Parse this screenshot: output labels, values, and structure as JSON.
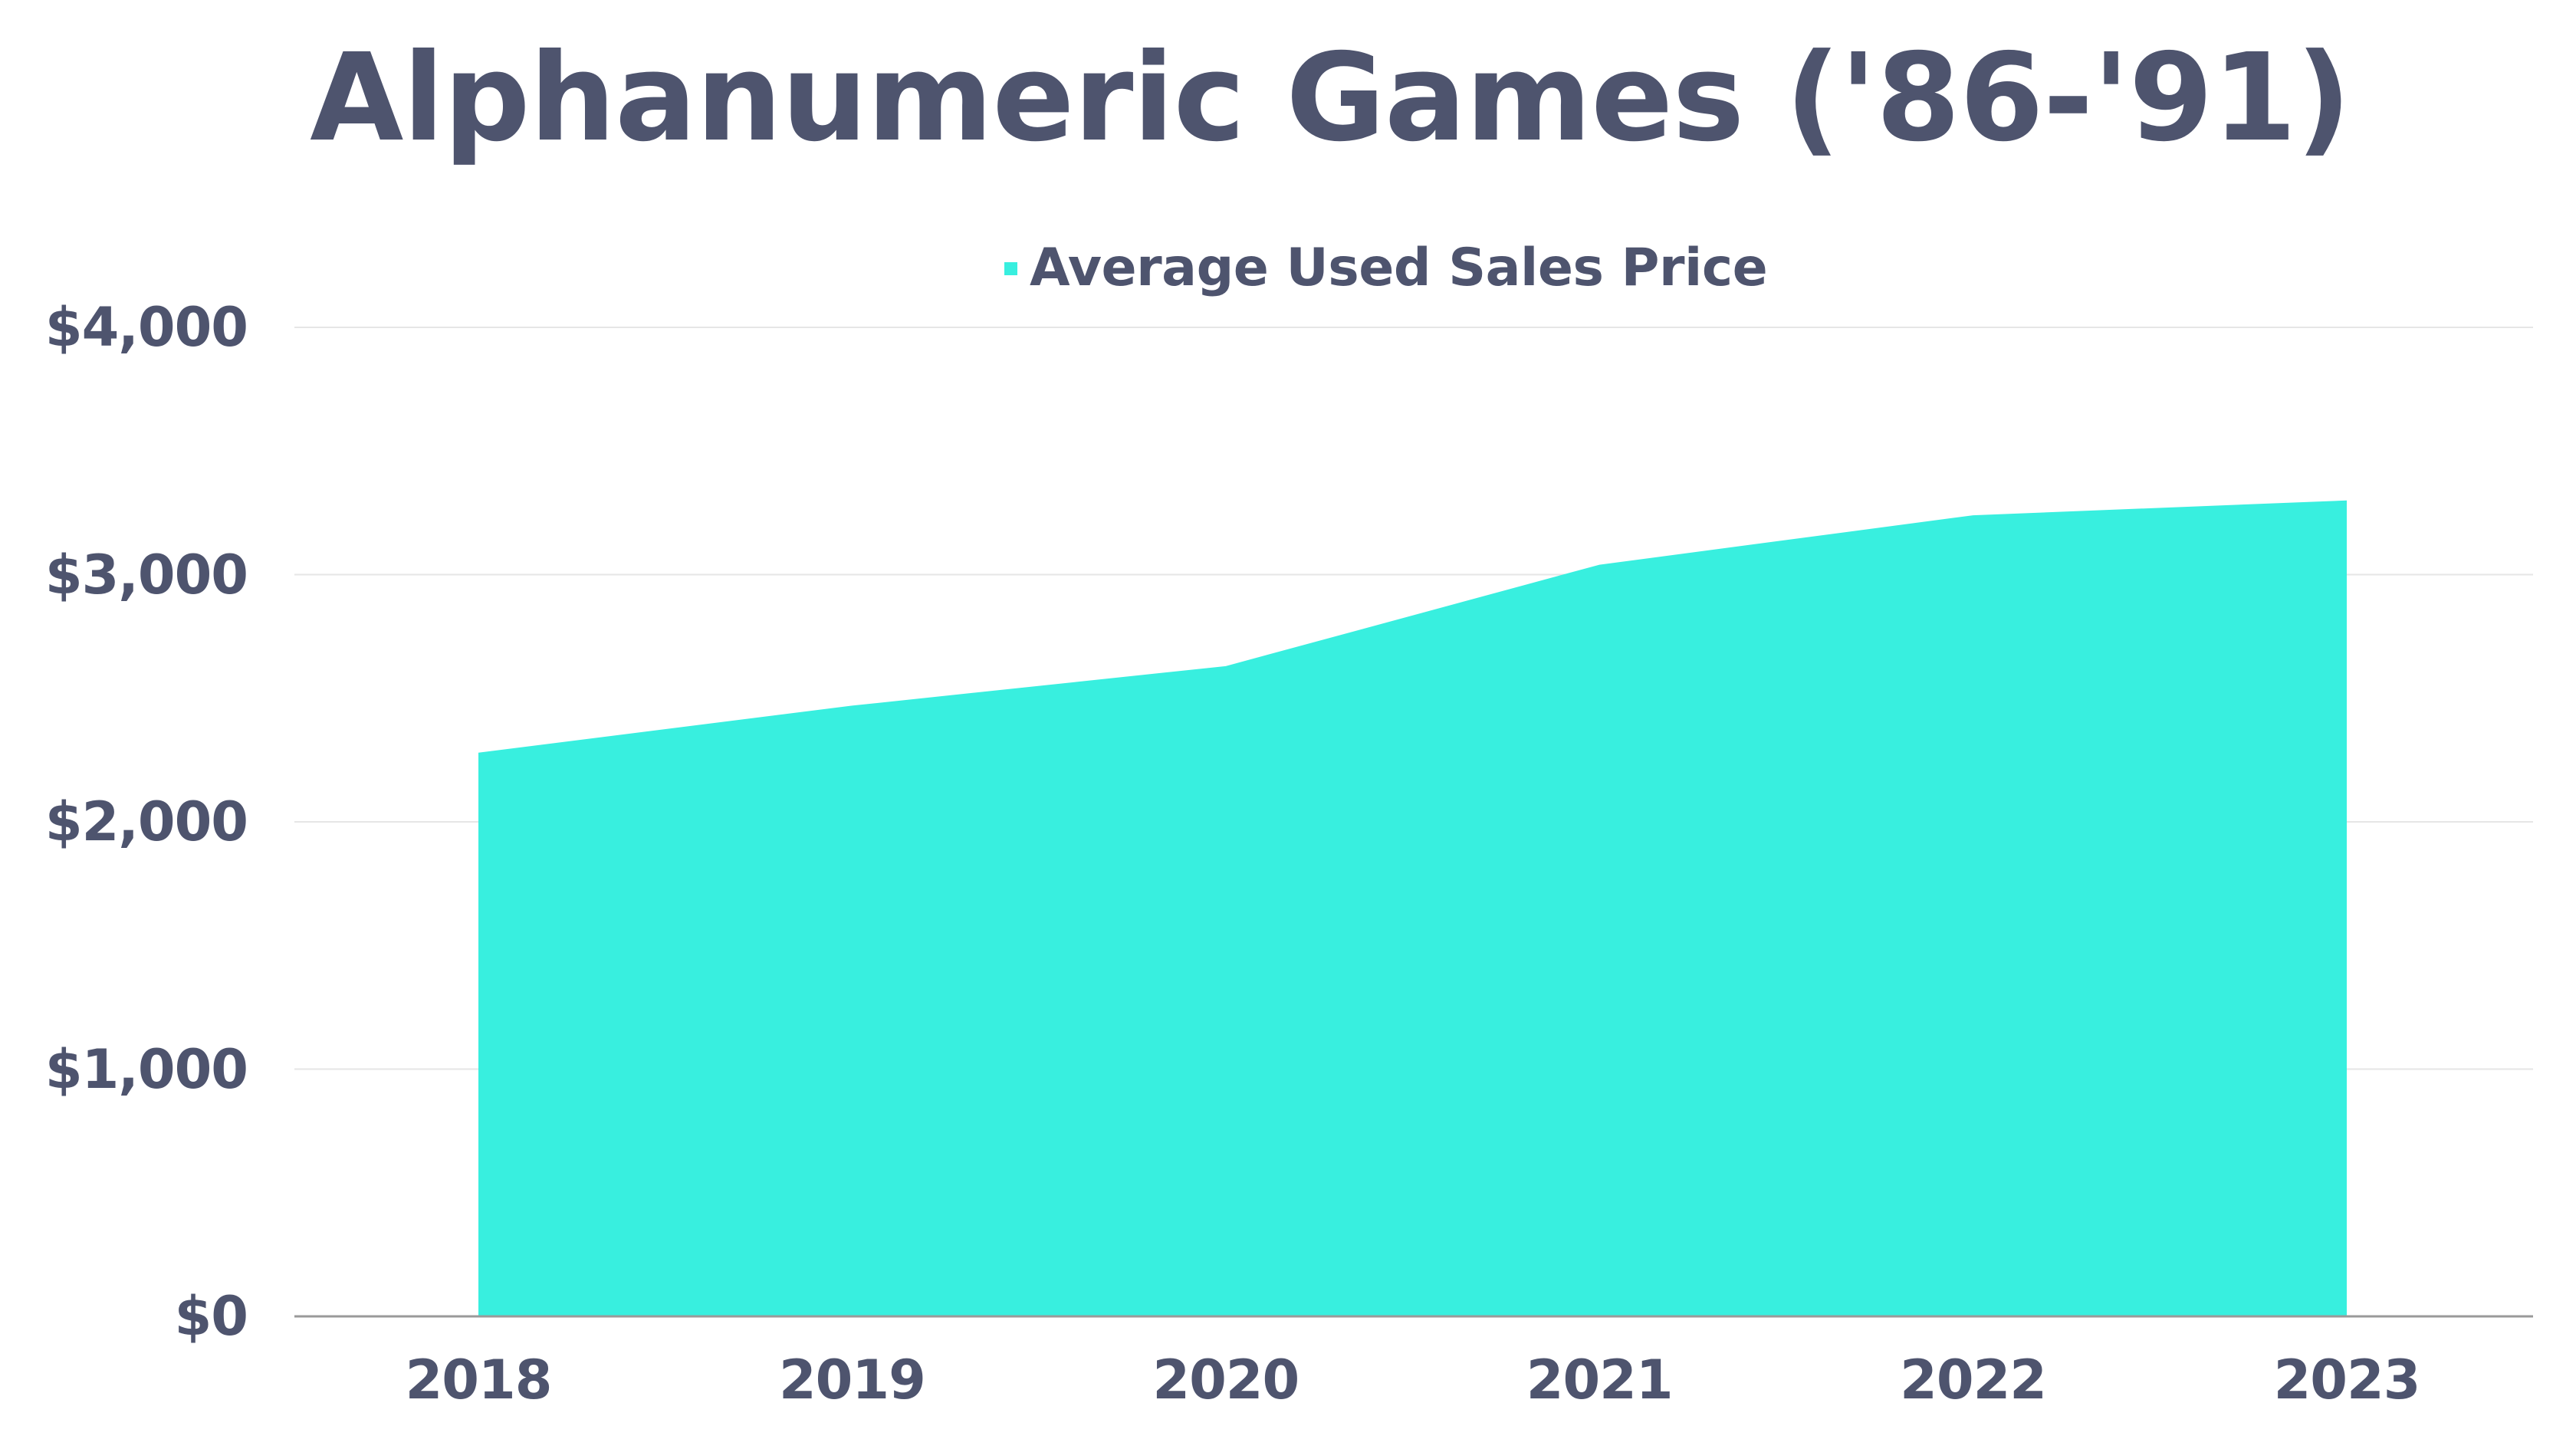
{
  "chart_data": {
    "type": "area",
    "title": "Alphanumeric Games ('86-'91)",
    "xlabel": "",
    "ylabel": "",
    "categories": [
      "2018",
      "2019",
      "2020",
      "2021",
      "2022",
      "2023"
    ],
    "series": [
      {
        "name": "Average Used Sales Price",
        "color": "#38EFDF",
        "values": [
          2280,
          2470,
          2630,
          3040,
          3240,
          3300
        ]
      }
    ],
    "ylim": [
      0,
      4000
    ],
    "yticks": [
      0,
      1000,
      2000,
      3000,
      4000
    ],
    "ytick_labels": [
      "$0",
      "$1,000",
      "$2,000",
      "$3,000",
      "$4,000"
    ],
    "grid": true,
    "legend_position": "top"
  },
  "header": {
    "title": "Alphanumeric Games ('86-'91)"
  },
  "legend": {
    "label": "Average Used Sales Price",
    "color": "#38EFDF"
  },
  "colors": {
    "text": "#4E546E",
    "grid": "#E6E6E6",
    "axis": "#9A9A9A",
    "fill": "#38EFDF"
  }
}
